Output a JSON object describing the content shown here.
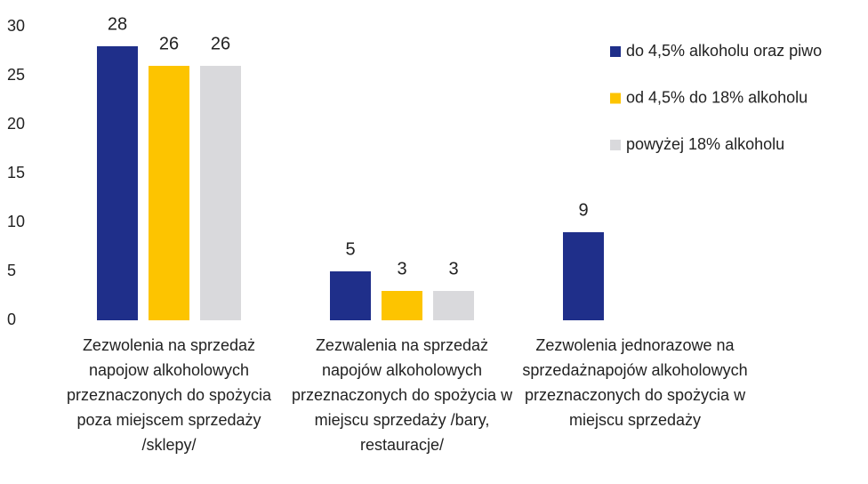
{
  "chart_data": {
    "type": "bar",
    "categories": [
      "Zezwolenia na sprzedaż napojow alkoholowych przeznaczonych do spożycia poza miejscem sprzedaży /sklepy/",
      "Zezwalenia na sprzedaż napojów alkoholowych przeznaczonych do spożycia w miejscu sprzedaży /bary, restauracje/",
      "Zezwolenia jednorazowe na sprzedażnapojów alkoholowych przeznaczonych do spożycia w miejscu sprzedaży"
    ],
    "series": [
      {
        "name": "do 4,5% alkoholu oraz piwo",
        "color": "#1f2f8a",
        "values": [
          28,
          5,
          9
        ]
      },
      {
        "name": "od 4,5% do 18% alkoholu",
        "color": "#fdc400",
        "values": [
          26,
          3,
          null
        ]
      },
      {
        "name": "powyżej 18% alkoholu",
        "color": "#d9d9dc",
        "values": [
          26,
          3,
          null
        ]
      }
    ],
    "ylim": [
      0,
      30
    ],
    "yticks": [
      0,
      5,
      10,
      15,
      20,
      25,
      30
    ],
    "grid": false,
    "legend": "right"
  }
}
